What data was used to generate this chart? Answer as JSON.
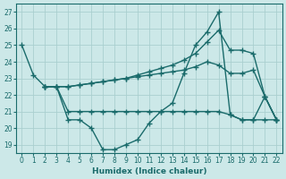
{
  "xlabel": "Humidex (Indice chaleur)",
  "bg_color": "#cce8e8",
  "line_color": "#1a6b6b",
  "grid_color": "#b8d8d8",
  "xlim": [
    -0.5,
    22.5
  ],
  "ylim": [
    18.5,
    27.5
  ],
  "yticks": [
    19,
    20,
    21,
    22,
    23,
    24,
    25,
    26,
    27
  ],
  "xticks": [
    0,
    1,
    2,
    3,
    4,
    5,
    6,
    7,
    8,
    9,
    10,
    11,
    12,
    13,
    14,
    15,
    16,
    17,
    18,
    19,
    20,
    21,
    22
  ],
  "series": [
    {
      "x": [
        0,
        1,
        2,
        3,
        4,
        5,
        6,
        7,
        8,
        9,
        10,
        11,
        12,
        13,
        14,
        15,
        16,
        17,
        18,
        19,
        20,
        21,
        22
      ],
      "y": [
        25,
        23.2,
        22.5,
        22.5,
        20.5,
        20.5,
        20.0,
        18.7,
        18.7,
        19.0,
        19.3,
        20.3,
        21.0,
        21.5,
        23.3,
        25.0,
        25.8,
        27.0,
        20.8,
        20.5,
        20.5,
        21.9,
        20.5
      ]
    },
    {
      "x": [
        2,
        3,
        4,
        5,
        6,
        7,
        8,
        9,
        10,
        11,
        12,
        13,
        14,
        15,
        16,
        17,
        18,
        19,
        20,
        21,
        22
      ],
      "y": [
        22.5,
        22.5,
        21.0,
        21.0,
        21.0,
        21.0,
        21.0,
        21.0,
        21.0,
        21.0,
        21.0,
        21.0,
        21.0,
        21.0,
        21.0,
        21.0,
        20.8,
        20.5,
        20.5,
        20.5,
        20.5
      ]
    },
    {
      "x": [
        2,
        3,
        4,
        5,
        6,
        7,
        8,
        9,
        10,
        11,
        12,
        13,
        14,
        15,
        16,
        17,
        18,
        19,
        20,
        21,
        22
      ],
      "y": [
        22.5,
        22.5,
        22.5,
        22.6,
        22.7,
        22.8,
        22.9,
        23.0,
        23.1,
        23.2,
        23.3,
        23.4,
        23.5,
        23.7,
        24.0,
        23.8,
        23.3,
        23.3,
        23.5,
        21.9,
        20.5
      ]
    },
    {
      "x": [
        2,
        3,
        4,
        5,
        6,
        7,
        8,
        9,
        10,
        11,
        12,
        13,
        14,
        15,
        16,
        17,
        18,
        19,
        20,
        21,
        22
      ],
      "y": [
        22.5,
        22.5,
        22.5,
        22.6,
        22.7,
        22.8,
        22.9,
        23.0,
        23.2,
        23.4,
        23.6,
        23.8,
        24.1,
        24.5,
        25.2,
        25.9,
        24.7,
        24.7,
        24.5,
        21.9,
        20.5
      ]
    }
  ]
}
